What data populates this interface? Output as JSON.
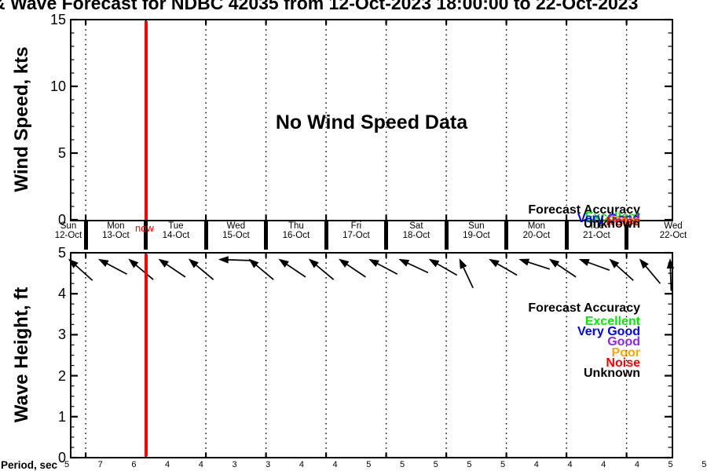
{
  "title": "& Wave Forecast for NDBC 42035 from 12-Oct-2023 18:00:00 to 22-Oct-2023",
  "wind_panel": {
    "ylabel": "Wind Speed, kts",
    "yticks": [
      0,
      5,
      10,
      15
    ],
    "ymax": 15,
    "no_data_message": "No Wind Speed Data"
  },
  "wave_panel": {
    "ylabel": "Wave Height, ft",
    "yticks": [
      0,
      1,
      2,
      3,
      4,
      5
    ],
    "ymax": 5,
    "arrow_angles_deg": [
      138,
      152,
      140,
      146,
      140,
      178,
      140,
      146,
      140,
      146,
      152,
      155,
      150,
      115,
      150,
      162,
      146,
      160,
      138,
      130,
      92
    ]
  },
  "date_axis": {
    "now_label": "now",
    "now_color": "#ff0000",
    "days": [
      {
        "weekday": "Sun",
        "date": "12-Oct"
      },
      {
        "weekday": "Mon",
        "date": "13-Oct"
      },
      {
        "weekday": "Tue",
        "date": "14-Oct"
      },
      {
        "weekday": "Wed",
        "date": "15-Oct"
      },
      {
        "weekday": "Thu",
        "date": "16-Oct"
      },
      {
        "weekday": "Fri",
        "date": "17-Oct"
      },
      {
        "weekday": "Sat",
        "date": "18-Oct"
      },
      {
        "weekday": "Sun",
        "date": "19-Oct"
      },
      {
        "weekday": "Mon",
        "date": "20-Oct"
      },
      {
        "weekday": "Tue",
        "date": "21-Oct"
      },
      {
        "weekday": "Wed",
        "date": "22-Oct"
      }
    ]
  },
  "legend": {
    "title": "Forecast Accuracy",
    "items": [
      {
        "label": "Excellent",
        "color": "#00ee00"
      },
      {
        "label": "Very Good",
        "color": "#0000ff"
      },
      {
        "label": "Good",
        "color": "#8a2be2"
      },
      {
        "label": "Poor",
        "color": "#ffa500"
      },
      {
        "label": "Noise",
        "color": "#ff0000"
      },
      {
        "label": "Unknown",
        "color": "#000000"
      }
    ]
  },
  "period_row": {
    "label": "Period, sec",
    "values": [
      5,
      7,
      6,
      4,
      4,
      3,
      3,
      4,
      4,
      5,
      5,
      5,
      5,
      5,
      4,
      4,
      4,
      4,
      5,
      5
    ]
  },
  "chart_data": [
    {
      "type": "line",
      "title": "& Wave Forecast for NDBC 42035 from 12-Oct-2023 18:00:00 to 22-Oct-2023",
      "ylabel": "Wind Speed, kts",
      "ylim": [
        0,
        15
      ],
      "yticks": [
        0,
        5,
        10,
        15
      ],
      "x_range": [
        "12-Oct-2023 18:00:00",
        "22-Oct-2023 18:00:00"
      ],
      "x_tick_labels": [
        "Sun 12-Oct",
        "Mon 13-Oct",
        "Tue 14-Oct",
        "Wed 15-Oct",
        "Thu 16-Oct",
        "Fri 17-Oct",
        "Sat 18-Oct",
        "Sun 19-Oct",
        "Mon 20-Oct",
        "Tue 21-Oct",
        "Wed 22-Oct"
      ],
      "series": [],
      "annotations": [
        "No Wind Speed Data",
        "red vertical now-line at 14-Oct-2023 00:00"
      ],
      "grid": "vertical dotted lines at each day boundary",
      "legend": [
        "Forecast Accuracy",
        "Excellent",
        "Very Good",
        "Good",
        "Poor",
        "Noise",
        "Unknown"
      ],
      "legend_position": "bottom-right (overlapping/clipped)"
    },
    {
      "type": "line",
      "ylabel": "Wave Height, ft",
      "ylim": [
        0,
        5
      ],
      "yticks": [
        0,
        1,
        2,
        3,
        4,
        5
      ],
      "x_range": [
        "12-Oct-2023 18:00:00",
        "22-Oct-2023 18:00:00"
      ],
      "series": [],
      "wave_direction_arrows_deg": [
        138,
        152,
        140,
        146,
        140,
        178,
        140,
        146,
        140,
        146,
        152,
        155,
        150,
        115,
        150,
        162,
        146,
        160,
        138,
        130,
        92
      ],
      "period_sec": [
        5,
        7,
        6,
        4,
        4,
        3,
        3,
        4,
        4,
        5,
        5,
        5,
        5,
        5,
        4,
        4,
        4,
        4,
        5,
        5
      ],
      "annotations": [
        "red vertical now-line at 14-Oct-2023 00:00",
        "wave direction arrows along top edge"
      ],
      "grid": "vertical dotted lines at each day boundary",
      "legend": [
        "Forecast Accuracy",
        "Excellent",
        "Very Good",
        "Good",
        "Poor",
        "Noise",
        "Unknown"
      ],
      "legend_position": "center-right"
    }
  ]
}
